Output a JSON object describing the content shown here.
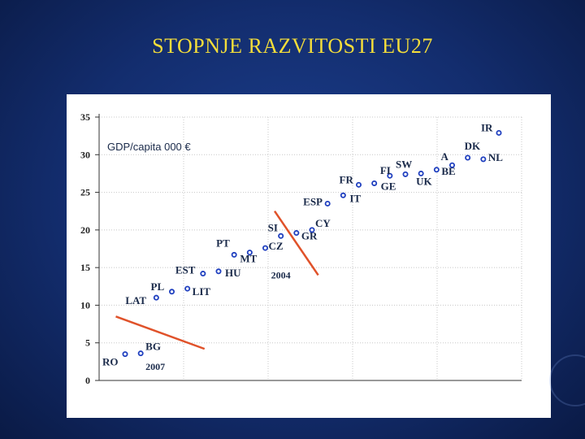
{
  "slide": {
    "title": "STOPNJE RAZVITOSTI EU27"
  },
  "colors": {
    "point": "#1f3fbf",
    "trend": "#e0522a",
    "grid": "#c8c8c8"
  },
  "chart_data": {
    "type": "scatter",
    "annotation": "GDP/capita 000 €",
    "ylim": [
      0,
      35
    ],
    "yticks": [
      "0",
      "5",
      "10",
      "15",
      "20",
      "25",
      "30",
      "35"
    ],
    "ytick_values": [
      0,
      5,
      10,
      15,
      20,
      25,
      30,
      35
    ],
    "grid": true,
    "points": [
      {
        "label": "RO",
        "rank": 1,
        "value": 3.5
      },
      {
        "label": "BG",
        "rank": 2,
        "value": 3.6
      },
      {
        "label": "LAT",
        "rank": 3,
        "value": 11.0
      },
      {
        "label": "PL",
        "rank": 4,
        "value": 11.8
      },
      {
        "label": "LIT",
        "rank": 5,
        "value": 12.2
      },
      {
        "label": "EST",
        "rank": 6,
        "value": 14.2
      },
      {
        "label": "HU",
        "rank": 7,
        "value": 14.5
      },
      {
        "label": "PT",
        "rank": 8,
        "value": 16.7
      },
      {
        "label": "MT",
        "rank": 9,
        "value": 17.0
      },
      {
        "label": "CZ",
        "rank": 10,
        "value": 17.6
      },
      {
        "label": "SI",
        "rank": 11,
        "value": 19.2
      },
      {
        "label": "GR",
        "rank": 12,
        "value": 19.6
      },
      {
        "label": "CY",
        "rank": 13,
        "value": 20.0
      },
      {
        "label": "ESP",
        "rank": 14,
        "value": 23.5
      },
      {
        "label": "IT",
        "rank": 15,
        "value": 24.6
      },
      {
        "label": "FR",
        "rank": 16,
        "value": 26.0
      },
      {
        "label": "GE",
        "rank": 17,
        "value": 26.2
      },
      {
        "label": "FI",
        "rank": 18,
        "value": 27.2
      },
      {
        "label": "SW",
        "rank": 19,
        "value": 27.4
      },
      {
        "label": "UK",
        "rank": 20,
        "value": 27.5
      },
      {
        "label": "BE",
        "rank": 21,
        "value": 28.0
      },
      {
        "label": "A",
        "rank": 22,
        "value": 28.6
      },
      {
        "label": "DK",
        "rank": 23,
        "value": 29.6
      },
      {
        "label": "NL",
        "rank": 24,
        "value": 29.4
      },
      {
        "label": "IR",
        "rank": 25,
        "value": 32.9
      }
    ],
    "trend_lines": [
      {
        "label": "2007",
        "from": {
          "rank": 0.4,
          "value": 8.5
        },
        "to": {
          "rank": 6.1,
          "value": 4.2
        }
      },
      {
        "label": "2004",
        "from": {
          "rank": 10.6,
          "value": 22.5
        },
        "to": {
          "rank": 13.4,
          "value": 14.0
        }
      }
    ]
  }
}
